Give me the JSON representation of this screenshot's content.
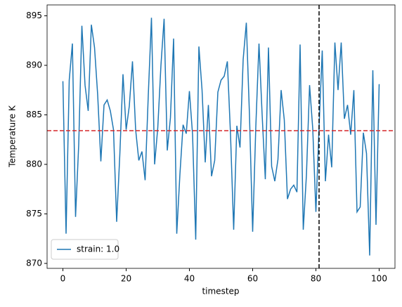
{
  "chart_data": {
    "type": "line",
    "x_label": "timestep",
    "y_label": "Temperature K",
    "x": [
      0,
      1,
      2,
      3,
      4,
      5,
      6,
      7,
      8,
      9,
      10,
      11,
      12,
      13,
      14,
      15,
      16,
      17,
      18,
      19,
      20,
      21,
      22,
      23,
      24,
      25,
      26,
      27,
      28,
      29,
      30,
      31,
      32,
      33,
      34,
      35,
      36,
      37,
      38,
      39,
      40,
      41,
      42,
      43,
      44,
      45,
      46,
      47,
      48,
      49,
      50,
      51,
      52,
      53,
      54,
      55,
      56,
      57,
      58,
      59,
      60,
      61,
      62,
      63,
      64,
      65,
      66,
      67,
      68,
      69,
      70,
      71,
      72,
      73,
      74,
      75,
      76,
      77,
      78,
      79,
      80,
      81,
      82,
      83,
      84,
      85,
      86,
      87,
      88,
      89,
      90,
      91,
      92,
      93,
      94,
      95,
      96,
      97,
      98,
      99,
      100
    ],
    "series": [
      {
        "name": "strain: 1.0",
        "color": "#1f77b4",
        "values": [
          888.4,
          873.0,
          888.5,
          892.2,
          874.7,
          882.0,
          894.0,
          888.0,
          885.4,
          894.1,
          891.8,
          887.0,
          880.3,
          886.0,
          886.5,
          885.4,
          883.5,
          874.2,
          881.0,
          889.1,
          883.5,
          885.9,
          890.4,
          883.5,
          880.4,
          881.3,
          878.4,
          887.0,
          894.8,
          880.0,
          883.7,
          890.0,
          894.7,
          881.4,
          884.7,
          892.7,
          873.0,
          879.0,
          884.0,
          883.1,
          887.4,
          883.0,
          872.4,
          891.9,
          887.5,
          880.2,
          886.0,
          878.8,
          880.4,
          887.3,
          888.5,
          888.9,
          890.4,
          883.0,
          873.4,
          883.9,
          881.7,
          890.6,
          894.3,
          884.9,
          873.2,
          883.8,
          892.2,
          885.0,
          878.5,
          891.8,
          879.8,
          878.3,
          880.5,
          887.5,
          884.5,
          876.5,
          877.5,
          877.9,
          877.2,
          892.1,
          873.4,
          878.9,
          888.0,
          883.6,
          875.2,
          883.8,
          891.5,
          878.3,
          883.0,
          879.7,
          892.3,
          887.5,
          892.3,
          884.6,
          886.0,
          883.0,
          887.5,
          875.2,
          875.7,
          883.2,
          881.1,
          870.8,
          889.5,
          873.9,
          888.1
        ]
      }
    ],
    "hline": {
      "value": 883.4,
      "color": "#d62728"
    },
    "vline": {
      "value": 81,
      "color": "#000000"
    },
    "xlim": [
      -5,
      105
    ],
    "xticks": [
      0,
      20,
      40,
      60,
      80,
      100
    ],
    "ylim": [
      869.5,
      896.1
    ],
    "yticks": [
      870,
      875,
      880,
      885,
      890,
      895
    ],
    "legend": "lower left"
  }
}
